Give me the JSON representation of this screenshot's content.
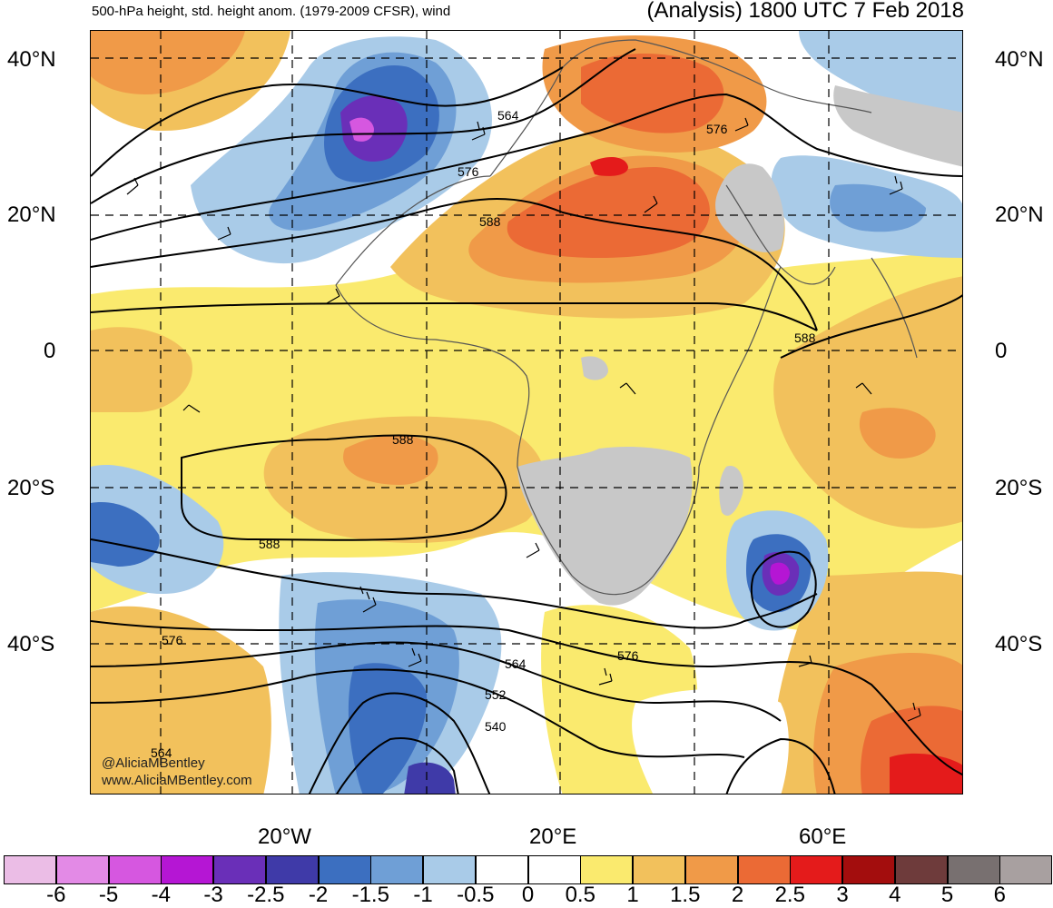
{
  "header": {
    "title_left": "500-hPa height, std. height anom. (1979-2009 CFSR), wind",
    "title_right": "(Analysis) 1800 UTC 7 Feb 2018"
  },
  "axes": {
    "lat_labels_left": [
      "40°N",
      "20°N",
      "0",
      "20°S",
      "40°S"
    ],
    "lat_labels_right": [
      "40°N",
      "20°N",
      "0",
      "20°S",
      "40°S"
    ],
    "lon_labels": [
      "20°W",
      "20°E",
      "60°E"
    ]
  },
  "contour_labels": [
    "564",
    "576",
    "588",
    "576",
    "588",
    "588",
    "588",
    "576",
    "564",
    "552",
    "540",
    "576",
    "564"
  ],
  "credit": {
    "handle": "@AliciaMBentley",
    "site": "www.AliciaMBentley.com"
  },
  "colorbar": {
    "colors": [
      "#ebbde6",
      "#e38ae6",
      "#d657e0",
      "#b516d4",
      "#6a2fb8",
      "#3f3aa8",
      "#3c6fc0",
      "#6f9fd6",
      "#a9cbe8",
      "#ffffff",
      "#ffffff",
      "#faea6e",
      "#f2c15c",
      "#f09a48",
      "#eb6a35",
      "#e41b1b",
      "#a30d0d",
      "#6e3b3b",
      "#787070",
      "#a8a0a0"
    ],
    "labels": [
      "-6",
      "-5",
      "-4",
      "-3",
      "-2.5",
      "-2",
      "-1.5",
      "-1",
      "-0.5",
      "0",
      "0.5",
      "1",
      "1.5",
      "2",
      "2.5",
      "3",
      "4",
      "5",
      "6"
    ]
  }
}
